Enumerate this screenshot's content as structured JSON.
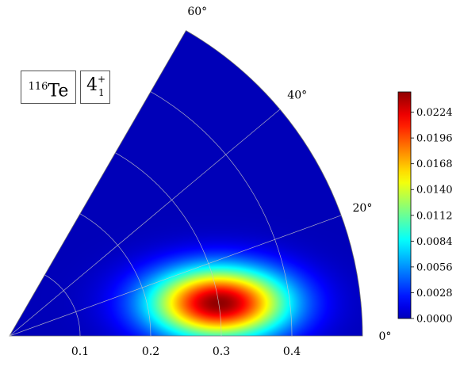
{
  "labels": {
    "nucleus_mass": "116",
    "nucleus_symbol": "Te",
    "state_main": "4",
    "state_sup": "+",
    "state_sub": "1"
  },
  "chart_data": {
    "type": "heatmap",
    "coordinate_system": "polar",
    "title": "",
    "xlabel": "",
    "ylabel": "",
    "radial_axis": {
      "range": [
        0,
        0.5
      ],
      "ticks": [
        0.1,
        0.2,
        0.3,
        0.4
      ],
      "tick_labels": [
        "0.1",
        "0.2",
        "0.3",
        "0.4"
      ]
    },
    "angular_axis": {
      "range_deg": [
        0,
        60
      ],
      "ticks_deg": [
        0,
        20,
        40,
        60
      ],
      "tick_labels": [
        "0°",
        "20°",
        "40°",
        "60°"
      ]
    },
    "grid": true,
    "colormap": "jet",
    "colorbar": {
      "min": 0.0,
      "max": 0.0246,
      "ticks": [
        0.0,
        0.0028,
        0.0056,
        0.0084,
        0.0112,
        0.014,
        0.0168,
        0.0196,
        0.0224
      ],
      "tick_labels": [
        "0.0000",
        "0.0028",
        "0.0056",
        "0.0084",
        "0.0112",
        "0.0140",
        "0.0168",
        "0.0196",
        "0.0224"
      ],
      "placement": "right"
    },
    "distribution": {
      "peak_value": 0.0246,
      "peak_beta": 0.3,
      "peak_gamma_deg": 9,
      "sigma_x": 0.068,
      "sigma_y": 0.035
    }
  }
}
